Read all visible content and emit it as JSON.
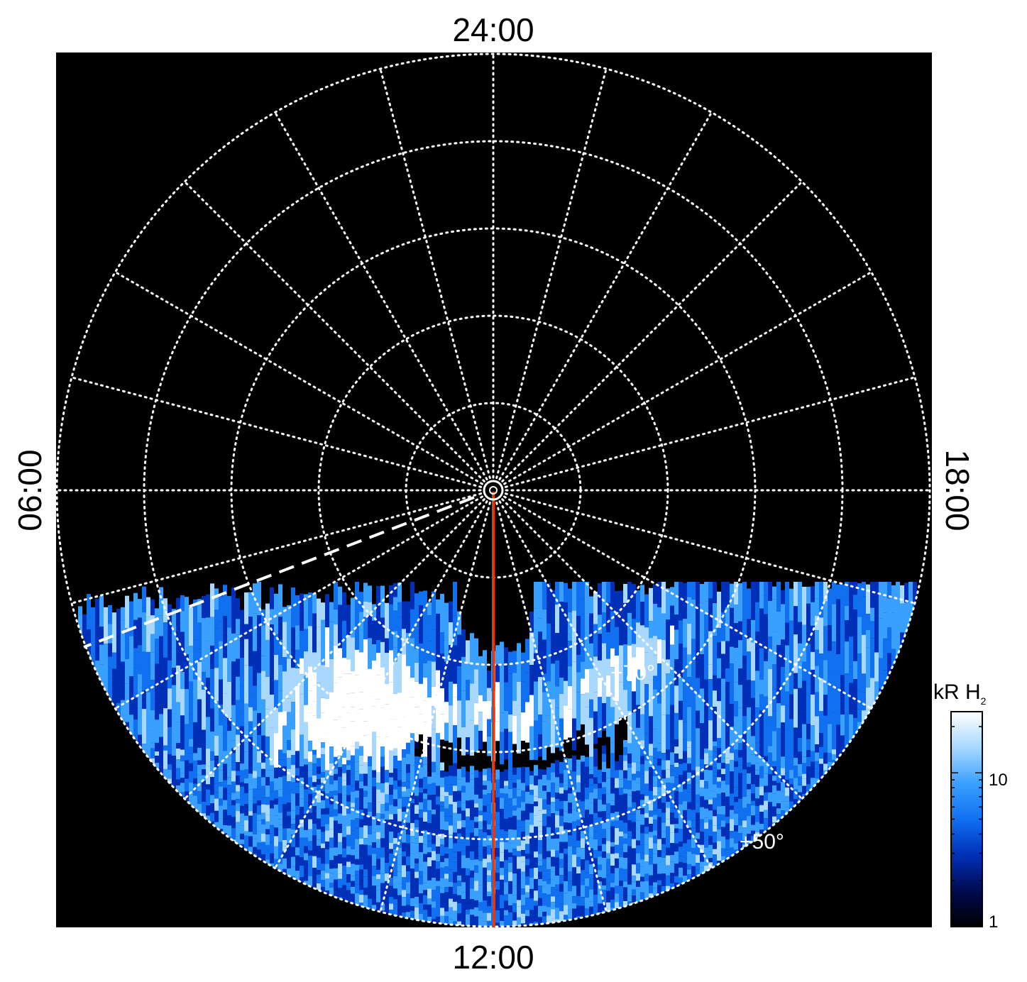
{
  "projection": {
    "type": "polar",
    "lt_labels": {
      "top": "24:00",
      "bottom": "12:00",
      "left": "06:00",
      "right": "18:00"
    },
    "lat_labels": [
      "+70°",
      "+50°"
    ],
    "meridian_spacing_hours": 1,
    "latitude_circles": 5
  },
  "colorbar": {
    "title": "kR H",
    "title_subscript": "2",
    "ticks": [
      "10",
      "1"
    ],
    "scale": "log",
    "range": [
      1,
      25
    ],
    "colors": [
      "#000000",
      "#000a50",
      "#0030b8",
      "#1070f0",
      "#3aa0ff",
      "#a8d8ff",
      "#ffffff"
    ]
  },
  "overlays": {
    "noon_meridian_color": "#e03a10",
    "dashed_line_color": "#ffffff"
  }
}
